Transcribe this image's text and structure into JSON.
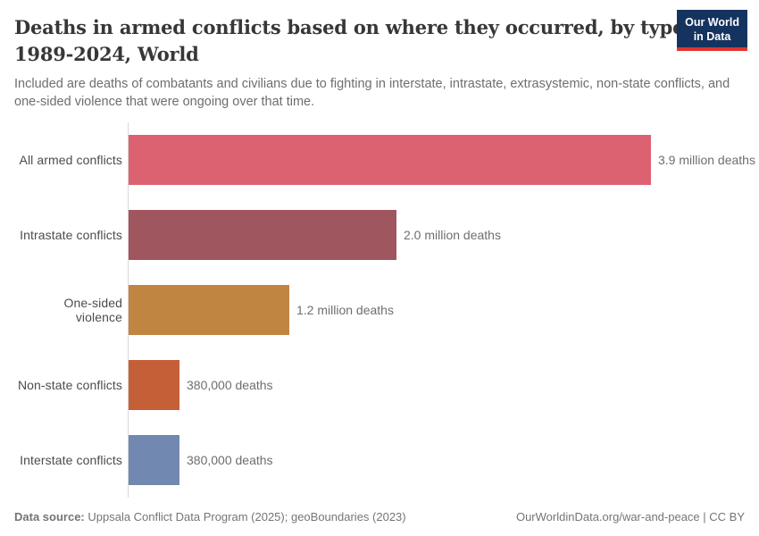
{
  "header": {
    "title_line1": "Deaths in armed conflicts based on where they occurred, by type,",
    "title_line2": "1989-2024, World",
    "subtitle": "Included are deaths of combatants and civilians due to fighting in interstate, intrastate, extrasystemic, non-state conflicts, and one-sided violence that were ongoing over that time.",
    "logo": {
      "line1": "Our World",
      "line2": "in Data",
      "bg_color": "#15335f",
      "accent_color": "#e0342c"
    }
  },
  "chart_data": {
    "type": "bar",
    "orientation": "horizontal",
    "title": "Deaths in armed conflicts based on where they occurred, by type, 1989-2024, World",
    "xlabel": "",
    "ylabel": "",
    "grid": false,
    "legend": false,
    "xlim": [
      0,
      3900000
    ],
    "categories": [
      "All armed conflicts",
      "Intrastate conflicts",
      "One-sided violence",
      "Non-state conflicts",
      "Interstate conflicts"
    ],
    "values": [
      3900000,
      2000000,
      1200000,
      380000,
      380000
    ],
    "value_labels": [
      "3.9 million deaths",
      "2.0 million deaths",
      "1.2 million deaths",
      "380,000 deaths",
      "380,000 deaths"
    ],
    "bar_colors": [
      "#dd6271",
      "#a0565f",
      "#bf8541",
      "#c55f37",
      "#7188b0"
    ],
    "axis_line_color": "#d9d9d9"
  },
  "footer": {
    "source_label": "Data source:",
    "source_text": " Uppsala Conflict Data Program (2025); geoBoundaries (2023)",
    "right_text": "OurWorldinData.org/war-and-peace | CC BY"
  }
}
